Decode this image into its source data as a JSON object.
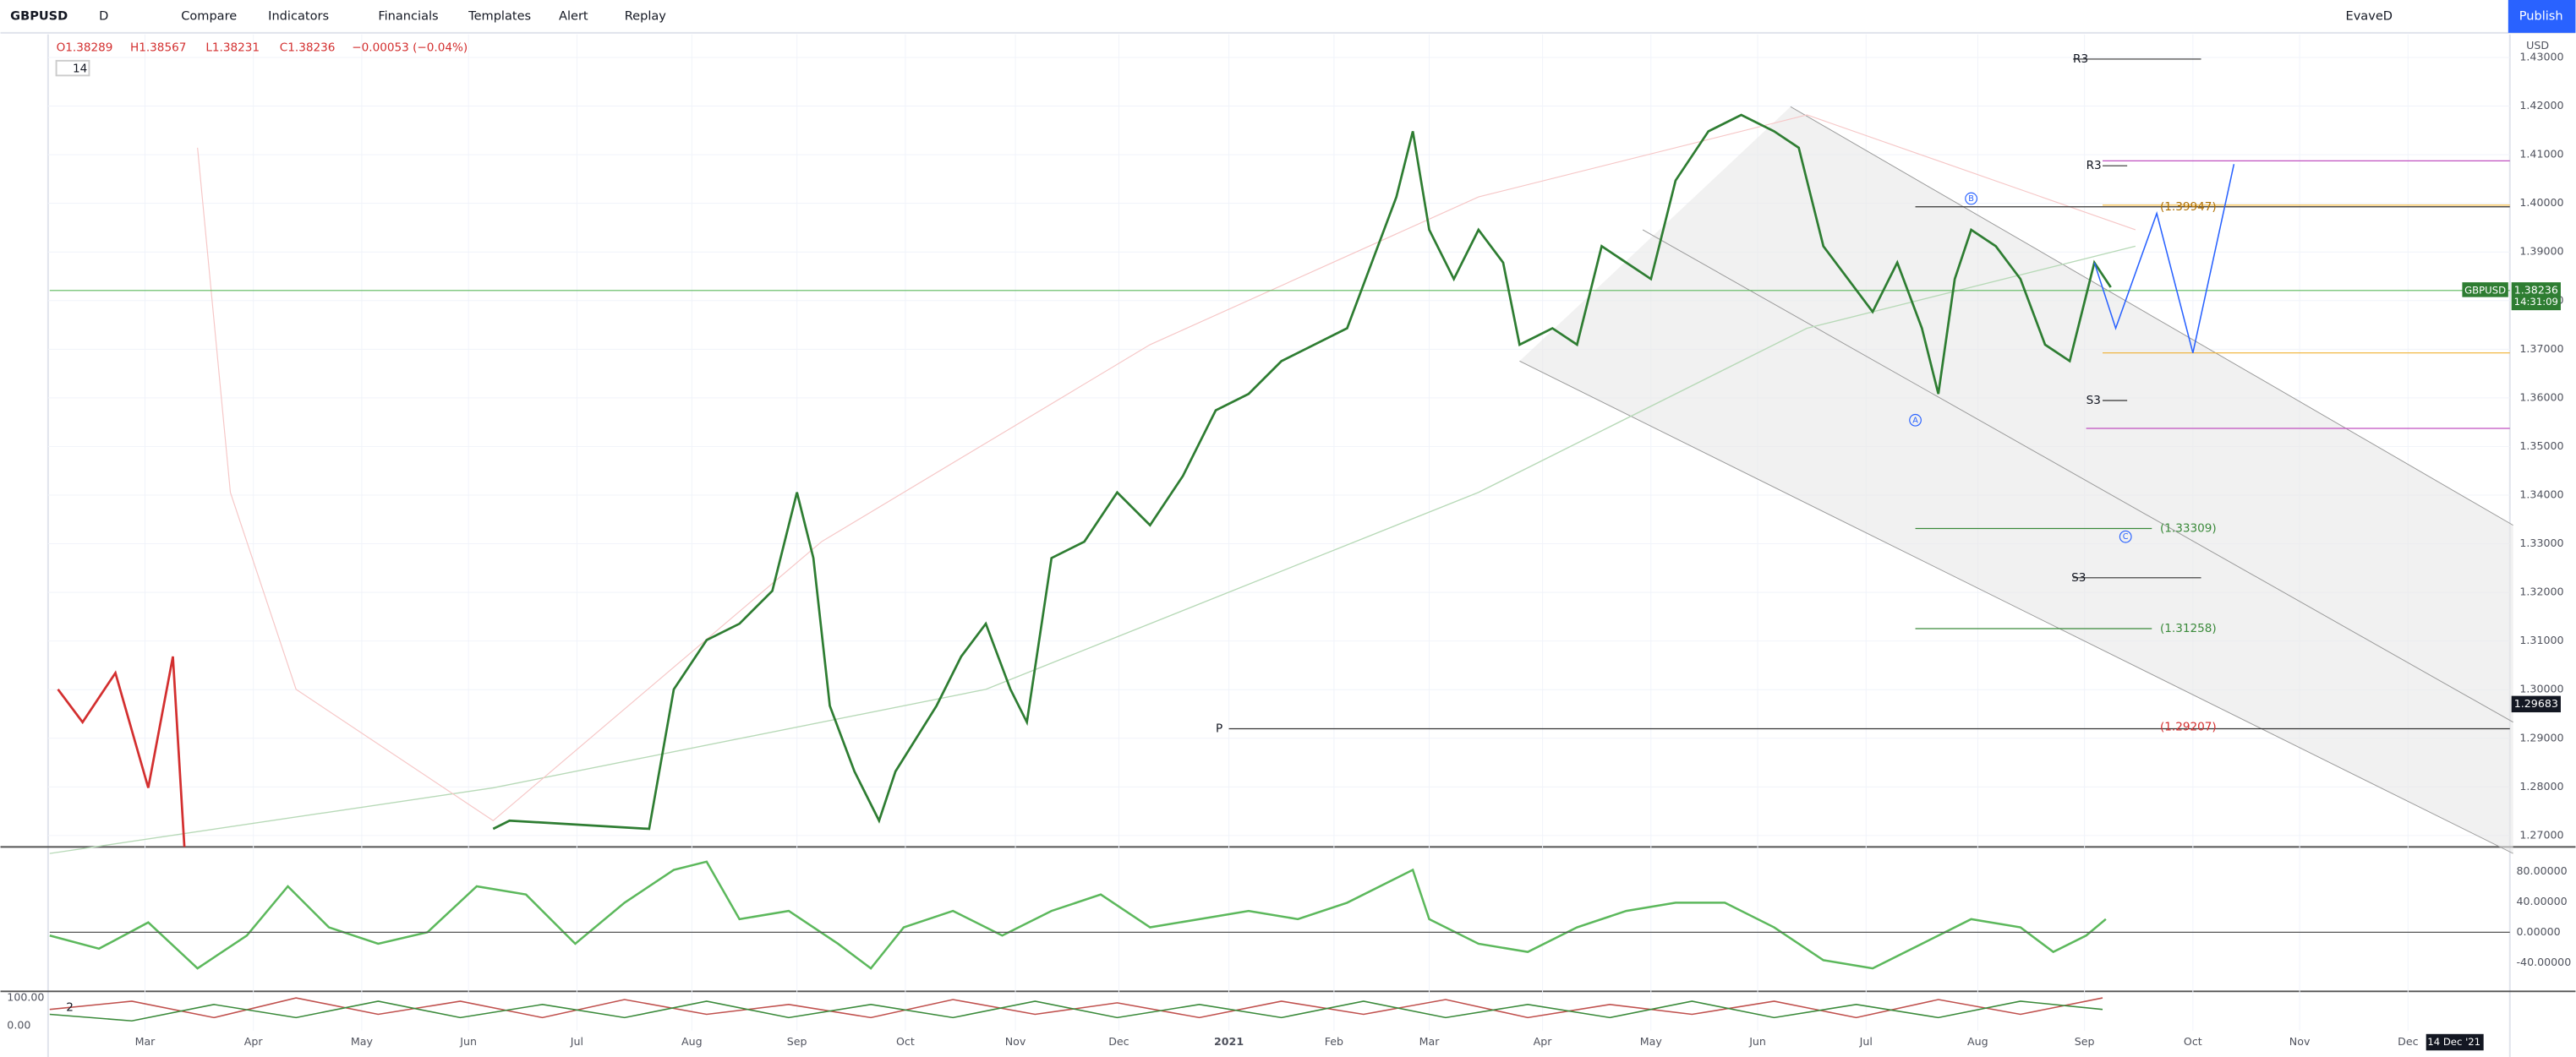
{
  "toolbar": {
    "symbol": "GBPUSD",
    "interval": "D",
    "items": [
      "Compare",
      "Indicators",
      "Financials",
      "Templates",
      "Alert",
      "Replay"
    ],
    "layout": "EvaveD",
    "publish": "Publish"
  },
  "legend": {
    "open": "O1.38289",
    "high": "H1.38567",
    "low": "L1.38231",
    "close": "C1.38236",
    "change": "−0.00053 (−0.04%)",
    "study": "14"
  },
  "currency": "USD",
  "price_axis": [
    "1.43000",
    "1.42000",
    "1.41000",
    "1.40000",
    "1.39000",
    "1.38000",
    "1.37000",
    "1.36000",
    "1.35000",
    "1.34000",
    "1.33000",
    "1.32000",
    "1.31000",
    "1.30000",
    "1.29000",
    "1.28000",
    "1.27000"
  ],
  "last_price": {
    "symbol": "GBPUSD",
    "price": "1.38236",
    "countdown": "14:31:09"
  },
  "crosshair_price": "1.29683",
  "time_axis": [
    "Mar",
    "Apr",
    "May",
    "Jun",
    "Jul",
    "Aug",
    "Sep",
    "Oct",
    "Nov",
    "Dec",
    "2021",
    "Feb",
    "Mar",
    "Apr",
    "May",
    "Jun",
    "Jul",
    "Aug",
    "Sep",
    "Oct",
    "Nov",
    "Dec"
  ],
  "crosshair_date": "14 Dec '21",
  "annotations": {
    "r3_top": "R3",
    "r3": "R3",
    "level_1": "(1.39947)",
    "s3": "S3",
    "level_2": "(1.33309)",
    "s3_low": "S3",
    "level_3": "(1.31258)",
    "pivot": "P",
    "level_4": "(1.29207)",
    "wave_a": "A",
    "wave_b": "B",
    "wave_c": "C"
  },
  "oscillator_axis": [
    "80.00000",
    "40.00000",
    "0.00000",
    "-40.00000"
  ],
  "lower_axis": [
    "100.00",
    "0.00"
  ],
  "lower_study": "2"
}
